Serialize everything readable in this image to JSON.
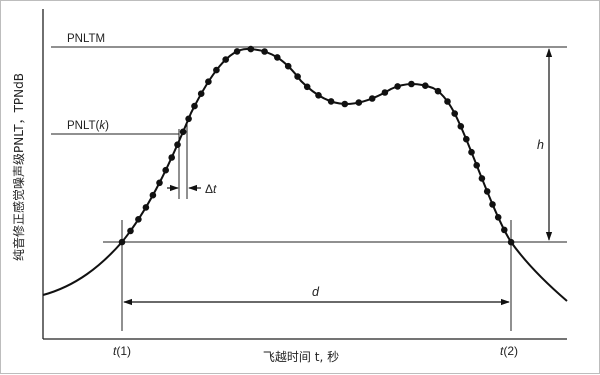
{
  "figure": {
    "y_axis_label": "纯音修正感觉噪声级PNLT，TPNdB",
    "x_axis_label": "飞越时间 t, 秒",
    "labels": {
      "pnltm": "PNLTM",
      "pnlt_k_prefix": "PNLT(",
      "pnlt_k_var": "k",
      "pnlt_k_suffix": ")",
      "delta_t_symbol": "Δ",
      "delta_t_var": "t",
      "h": "h",
      "d": "d",
      "t1_var": "t",
      "t1_idx": "(1)",
      "t2_var": "t",
      "t2_idx": "(2)"
    }
  }
}
